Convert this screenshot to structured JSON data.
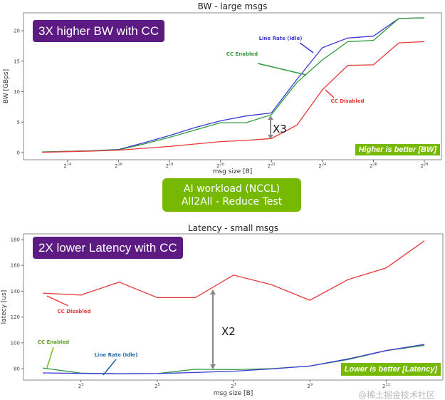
{
  "middle_banner": {
    "line1": "AI workload (NCCL)",
    "line2": "All2All - Reduce Test"
  },
  "watermark": "@稀土掘金技术社区",
  "colors": {
    "line_rate": "#3a3ad6",
    "cc_enabled": "#2e9a3e",
    "cc_disabled": "#e8383a",
    "callout": "#5c1a82",
    "badge": "#76b900",
    "arrow": "#888888"
  },
  "chart_data": [
    {
      "type": "line",
      "title": "BW - large msgs",
      "xlabel": "msg size [B]",
      "ylabel": "BW [GBps]",
      "x_scale": "log2",
      "x_exponents": [
        13,
        14,
        15,
        16,
        17,
        18,
        19,
        20,
        21,
        22,
        23,
        24,
        25,
        26,
        27,
        28
      ],
      "xticks": [
        "2^14",
        "2^16",
        "2^18",
        "2^20",
        "2^22",
        "2^24",
        "2^26",
        "2^28"
      ],
      "xtick_exponents": [
        14,
        16,
        18,
        20,
        22,
        24,
        26,
        28
      ],
      "yticks": [
        0,
        5,
        10,
        15,
        20
      ],
      "ylim": [
        -1,
        23
      ],
      "grid": false,
      "series": [
        {
          "name": "Line Rate (Idle)",
          "values": [
            0.1,
            0.2,
            0.3,
            0.5,
            1.6,
            2.8,
            4.1,
            5.2,
            6.0,
            6.5,
            12.0,
            17.2,
            18.8,
            19.1,
            22.0,
            22.1
          ]
        },
        {
          "name": "CC Enabled",
          "values": [
            0.1,
            0.2,
            0.3,
            0.45,
            1.4,
            2.5,
            3.7,
            4.9,
            4.9,
            6.2,
            11.5,
            15.2,
            18.2,
            18.4,
            22.0,
            22.1
          ]
        },
        {
          "name": "CC Disabled",
          "values": [
            0.05,
            0.15,
            0.25,
            0.4,
            0.7,
            1.0,
            1.4,
            1.8,
            2.0,
            2.3,
            4.5,
            10.3,
            14.3,
            14.4,
            18.0,
            18.2
          ]
        }
      ],
      "callout": "3X higher BW with CC",
      "badge": "Higher is better [BW]",
      "arrow_label": "X3"
    },
    {
      "type": "line",
      "title": "Latency - small msgs",
      "xlabel": "msg size [B]",
      "ylabel": "latecy [us]",
      "x_scale": "log2",
      "x_exponents": [
        2,
        3,
        4,
        5,
        6,
        7,
        8,
        9,
        10,
        11,
        12
      ],
      "xticks": [
        "2^3",
        "2^5",
        "2^7",
        "2^9",
        "2^11"
      ],
      "xtick_exponents": [
        3,
        5,
        7,
        9,
        11
      ],
      "yticks": [
        80,
        100,
        120,
        140,
        160,
        180
      ],
      "ylim": [
        70,
        182
      ],
      "grid": false,
      "series": [
        {
          "name": "CC Disabled",
          "values": [
            138.5,
            137,
            147,
            135,
            135,
            152.5,
            145,
            133,
            149,
            158,
            179
          ]
        },
        {
          "name": "CC Enabled",
          "values": [
            80.5,
            76.5,
            76,
            76.2,
            79.5,
            79.2,
            80,
            82,
            87,
            94,
            98
          ]
        },
        {
          "name": "Line Rate (Idle)",
          "values": [
            76.7,
            76.3,
            76,
            76.2,
            77,
            78,
            79.8,
            82,
            87.5,
            94,
            98.8
          ]
        }
      ],
      "callout": "2X lower Latency with CC",
      "badge": "Lower is better [Latency]",
      "arrow_label": "X2"
    }
  ]
}
